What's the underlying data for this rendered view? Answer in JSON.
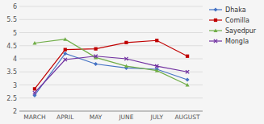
{
  "chart_data": {
    "type": "line",
    "categories": [
      "MARCH",
      "APRIL",
      "MAY",
      "JUNE",
      "JULY",
      "AUGUST"
    ],
    "series": [
      {
        "name": "Dhaka",
        "color": "#4472C4",
        "marker": "diamond",
        "values": [
          2.6,
          4.2,
          3.8,
          3.65,
          3.6,
          3.2
        ]
      },
      {
        "name": "Comilla",
        "color": "#C00000",
        "marker": "square",
        "values": [
          2.85,
          4.35,
          4.38,
          4.62,
          4.7,
          4.1
        ]
      },
      {
        "name": "Sayedpur",
        "color": "#70AD47",
        "marker": "triangle",
        "values": [
          4.6,
          4.75,
          4.05,
          3.72,
          3.55,
          3.0
        ]
      },
      {
        "name": "Mongla",
        "color": "#7030A0",
        "marker": "x",
        "values": [
          2.7,
          3.97,
          4.1,
          4.0,
          3.72,
          3.5
        ]
      }
    ],
    "ylim": [
      2.0,
      6.0
    ],
    "yticks": [
      2,
      2.5,
      3,
      3.5,
      4,
      4.5,
      5,
      5.5,
      6
    ],
    "grid": true,
    "legend": "right"
  }
}
